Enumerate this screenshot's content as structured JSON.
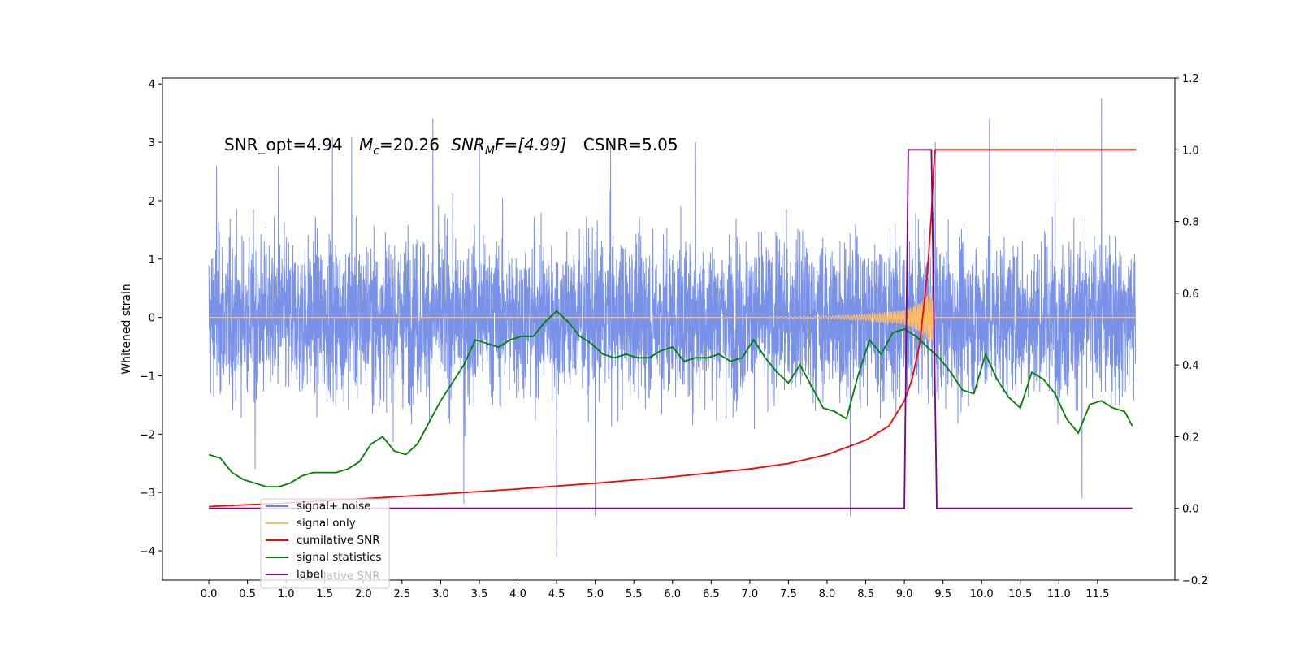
{
  "chart_data": {
    "type": "line",
    "title": "",
    "annotation": "SNR_opt=4.94   M_c=20.26  SNR_MF=[4.99]   CSNR=5.05",
    "annotation_parts": {
      "snr_opt": "SNR_opt=4.94",
      "mc_symbol": "M",
      "mc_sub": "c",
      "mc_value": "=20.26",
      "snrmf_symbol": "SNR",
      "snrmf_sub": "M",
      "snrmf_value": "F=[4.99]",
      "csnr": "CSNR=5.05"
    },
    "xlabel": "",
    "ylabel_left": "Whitened strain",
    "ylabel_right": "",
    "xlim": [
      -0.6,
      12.5
    ],
    "ylim_left": [
      -4.5,
      4.1
    ],
    "ylim_right": [
      -0.2,
      1.2
    ],
    "x_ticks": [
      "0.0",
      "0.5",
      "1.0",
      "1.5",
      "2.0",
      "2.5",
      "3.0",
      "3.5",
      "4.0",
      "4.5",
      "5.0",
      "5.5",
      "6.0",
      "6.5",
      "7.0",
      "7.5",
      "8.0",
      "8.5",
      "9.0",
      "9.5",
      "10.0",
      "10.5",
      "11.0",
      "11.5"
    ],
    "y_ticks_left": [
      "4",
      "3",
      "2",
      "1",
      "0",
      "−1",
      "−2",
      "−3",
      "−4"
    ],
    "y_ticks_right": [
      "1.2",
      "1.0",
      "0.8",
      "0.6",
      "0.4",
      "0.2",
      "0.0",
      "−0.2"
    ],
    "grid": false,
    "legend_position": "lower-left",
    "legend": [
      {
        "label": "signal+ noise",
        "color": "#6b85e5"
      },
      {
        "label": "signal only",
        "color": "#ffbf60"
      },
      {
        "label": "cumilative SNR",
        "color": "#ff0000"
      },
      {
        "label": "signal statistics",
        "color": "#008000"
      },
      {
        "label": "label",
        "color": "#800080"
      }
    ],
    "legend_ghost_text": "cumilative SNR",
    "series": [
      {
        "name": "signal+ noise",
        "axis": "left",
        "color": "#6b85e5",
        "description_range": [
          -2.6,
          2.6
        ],
        "spikes": [
          [
            0.1,
            2.6
          ],
          [
            0.6,
            -2.6
          ],
          [
            0.9,
            2.6
          ],
          [
            1.6,
            3.1
          ],
          [
            1.85,
            3.1
          ],
          [
            2.9,
            3.4
          ],
          [
            3.3,
            -3.2
          ],
          [
            3.5,
            3.1
          ],
          [
            4.5,
            -4.1
          ],
          [
            5.0,
            -3.4
          ],
          [
            5.2,
            3.0
          ],
          [
            6.3,
            3.0
          ],
          [
            8.3,
            -3.4
          ],
          [
            9.4,
            3.0
          ],
          [
            10.1,
            3.4
          ],
          [
            10.95,
            3.1
          ],
          [
            11.55,
            3.75
          ],
          [
            11.3,
            -3.1
          ]
        ]
      },
      {
        "name": "signal only",
        "axis": "left",
        "color": "#ffbf60",
        "x": [
          0.0,
          7.0,
          7.5,
          8.0,
          8.5,
          9.0,
          9.2,
          9.35,
          9.4,
          12.0
        ],
        "envelope": [
          0.0,
          0.0,
          0.01,
          0.02,
          0.05,
          0.12,
          0.25,
          0.45,
          0.0,
          0.0
        ]
      },
      {
        "name": "cumilative SNR",
        "axis": "right",
        "color": "#ff0000",
        "x": [
          0.0,
          1.0,
          2.0,
          3.0,
          4.0,
          5.0,
          6.0,
          7.0,
          7.5,
          8.0,
          8.5,
          8.8,
          9.0,
          9.1,
          9.2,
          9.3,
          9.35,
          9.38,
          9.4,
          12.0
        ],
        "y": [
          0.005,
          0.015,
          0.027,
          0.04,
          0.054,
          0.07,
          0.088,
          0.11,
          0.125,
          0.15,
          0.19,
          0.23,
          0.3,
          0.36,
          0.46,
          0.66,
          0.82,
          0.95,
          1.0,
          1.0
        ]
      },
      {
        "name": "signal statistics",
        "axis": "right",
        "color": "#008000",
        "x": [
          0.0,
          0.15,
          0.3,
          0.45,
          0.6,
          0.75,
          0.9,
          1.05,
          1.2,
          1.35,
          1.5,
          1.65,
          1.8,
          1.95,
          2.1,
          2.25,
          2.4,
          2.55,
          2.7,
          2.85,
          3.0,
          3.15,
          3.3,
          3.45,
          3.6,
          3.75,
          3.9,
          4.05,
          4.2,
          4.35,
          4.5,
          4.65,
          4.8,
          4.95,
          5.1,
          5.25,
          5.4,
          5.55,
          5.7,
          5.85,
          6.0,
          6.15,
          6.3,
          6.45,
          6.6,
          6.75,
          6.9,
          7.05,
          7.2,
          7.35,
          7.5,
          7.65,
          7.8,
          7.95,
          8.1,
          8.25,
          8.4,
          8.55,
          8.7,
          8.85,
          9.0,
          9.15,
          9.3,
          9.45,
          9.6,
          9.75,
          9.9,
          10.05,
          10.2,
          10.35,
          10.5,
          10.65,
          10.8,
          10.95,
          11.1,
          11.25,
          11.4,
          11.55,
          11.7,
          11.85,
          11.95
        ],
        "y": [
          0.15,
          0.14,
          0.1,
          0.08,
          0.07,
          0.06,
          0.06,
          0.07,
          0.09,
          0.1,
          0.1,
          0.1,
          0.11,
          0.13,
          0.18,
          0.2,
          0.16,
          0.15,
          0.18,
          0.24,
          0.3,
          0.35,
          0.4,
          0.47,
          0.46,
          0.45,
          0.47,
          0.48,
          0.48,
          0.52,
          0.55,
          0.52,
          0.48,
          0.46,
          0.43,
          0.42,
          0.43,
          0.42,
          0.42,
          0.44,
          0.45,
          0.41,
          0.42,
          0.42,
          0.43,
          0.41,
          0.42,
          0.47,
          0.42,
          0.38,
          0.35,
          0.4,
          0.34,
          0.28,
          0.27,
          0.25,
          0.37,
          0.47,
          0.43,
          0.49,
          0.5,
          0.48,
          0.45,
          0.42,
          0.38,
          0.33,
          0.32,
          0.43,
          0.36,
          0.31,
          0.28,
          0.38,
          0.36,
          0.32,
          0.25,
          0.21,
          0.29,
          0.3,
          0.28,
          0.27,
          0.23
        ]
      },
      {
        "name": "label",
        "axis": "right",
        "color": "#800080",
        "x": [
          0.0,
          9.0,
          9.05,
          9.35,
          9.42,
          11.95
        ],
        "y": [
          0.0,
          0.0,
          1.0,
          1.0,
          0.0,
          0.0
        ]
      }
    ]
  }
}
